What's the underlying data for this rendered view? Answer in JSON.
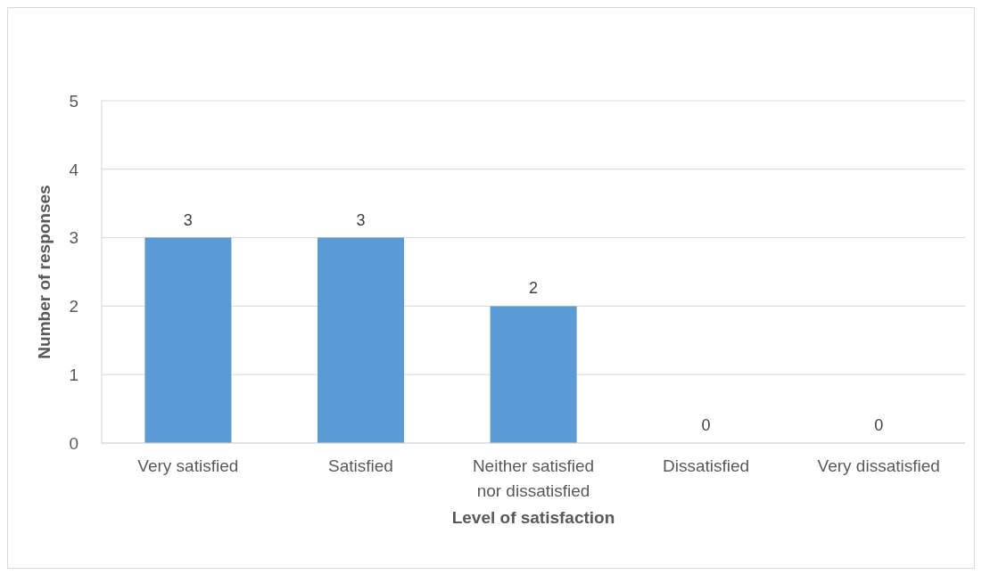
{
  "chart_data": {
    "type": "bar",
    "xlabel": "Level of satisfaction",
    "ylabel": "Number of responses",
    "categories": [
      "Very satisfied",
      "Satisfied",
      "Neither satisfied nor dissatisfied",
      "Dissatisfied",
      "Very dissatisfied"
    ],
    "values": [
      3,
      3,
      2,
      0,
      0
    ],
    "color": "#5b9bd5",
    "ylim": [
      0,
      5
    ],
    "yticks": [
      0,
      1,
      2,
      3,
      4,
      5
    ],
    "grid": "y",
    "data_labels": true
  }
}
